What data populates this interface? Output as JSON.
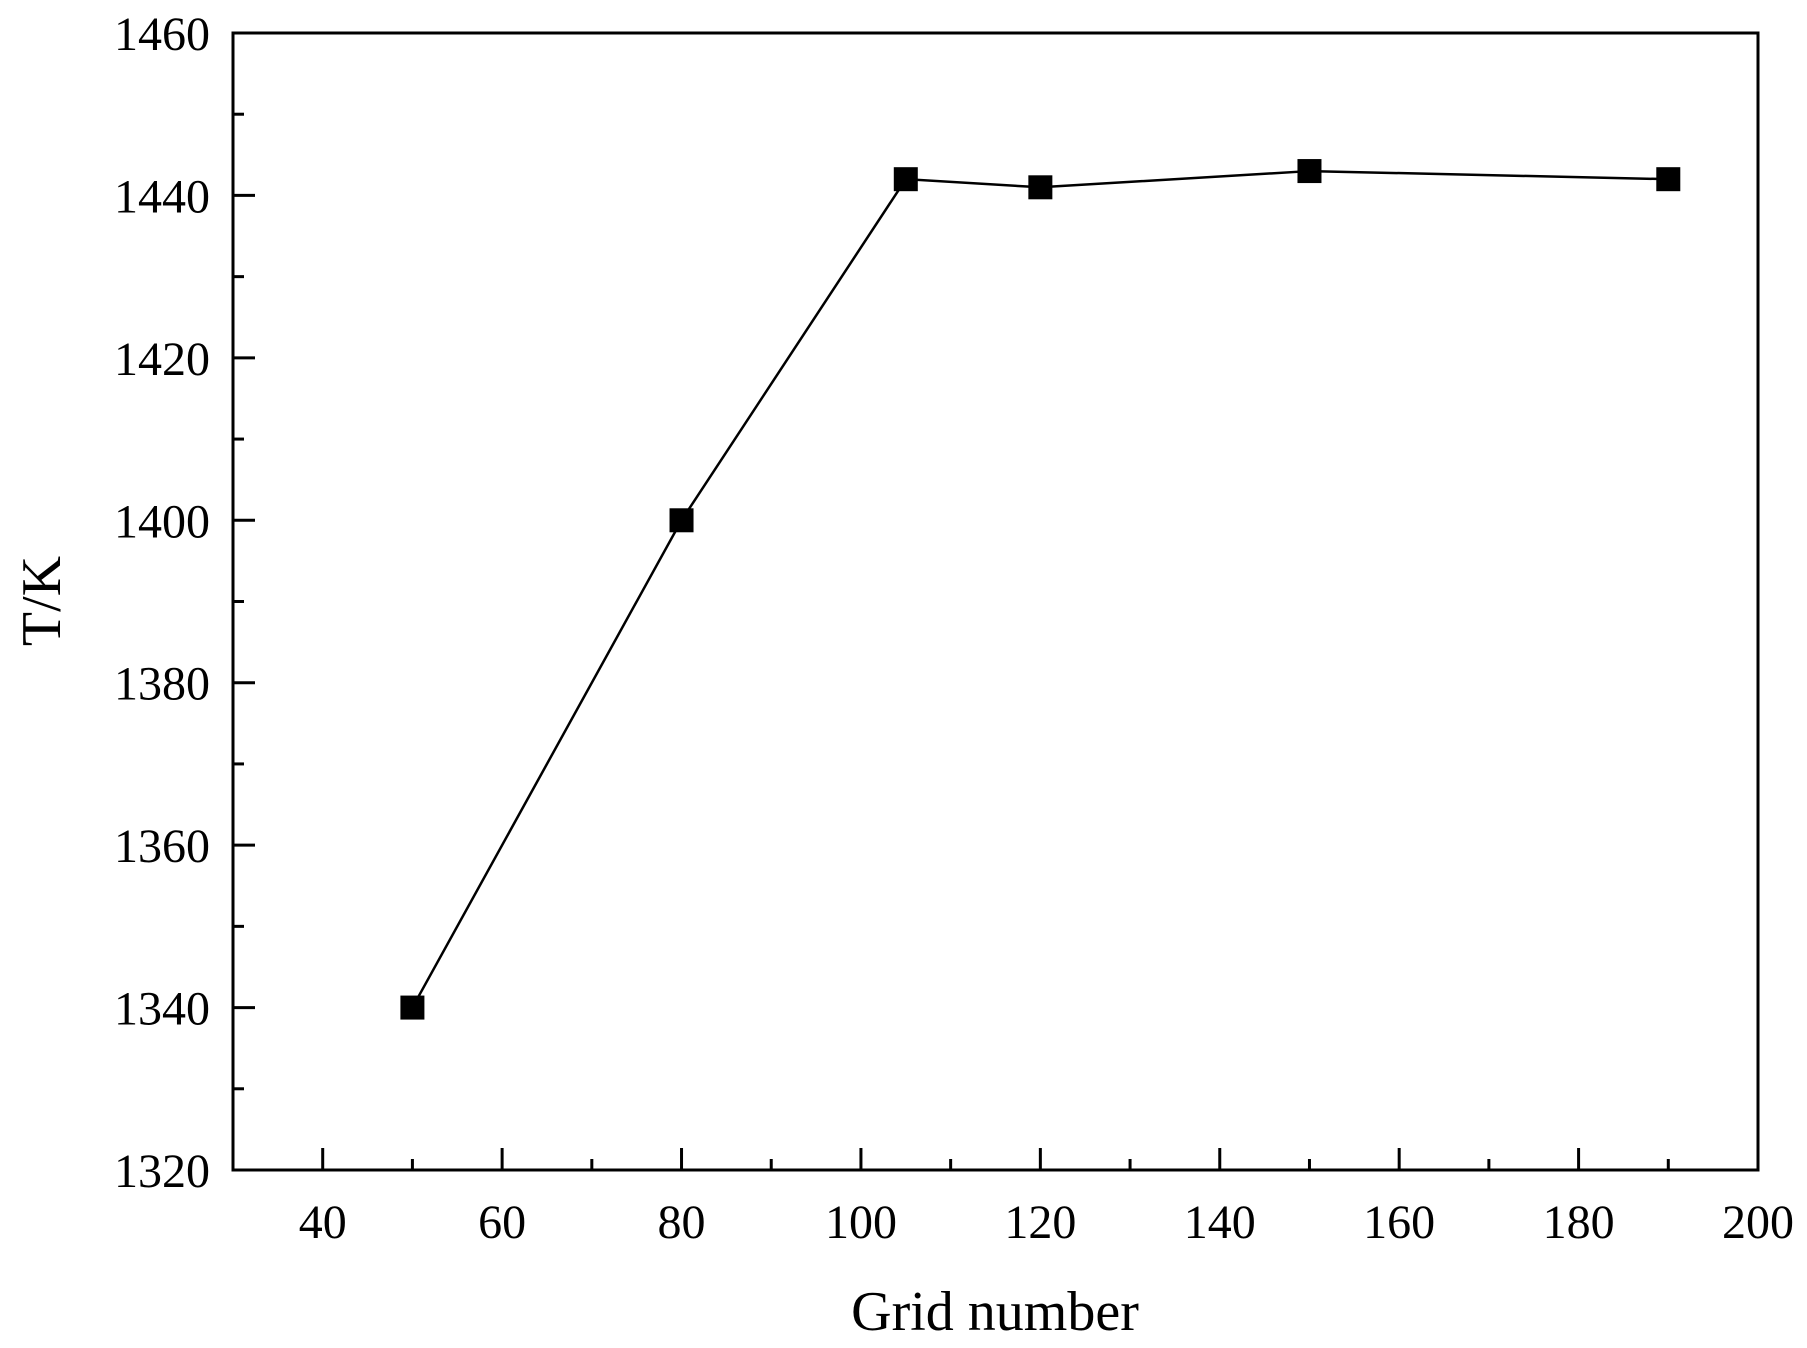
{
  "chart_data": {
    "type": "line",
    "xlabel": "Grid number",
    "ylabel": "T/K",
    "xlim": [
      30,
      200
    ],
    "ylim": [
      1320,
      1460
    ],
    "x_major_ticks": [
      40,
      60,
      80,
      100,
      120,
      140,
      160,
      180,
      200
    ],
    "x_minor_step": 10,
    "y_major_ticks": [
      1320,
      1340,
      1360,
      1380,
      1400,
      1420,
      1440,
      1460
    ],
    "y_minor_step": 10,
    "grid": false,
    "marker": "square",
    "series": [
      {
        "x": [
          50,
          80,
          105,
          120,
          150,
          190
        ],
        "y": [
          1340,
          1400,
          1442,
          1441,
          1443,
          1442
        ]
      }
    ],
    "colors": {
      "line": "#000000",
      "marker": "#000000",
      "frame": "#000000"
    }
  }
}
